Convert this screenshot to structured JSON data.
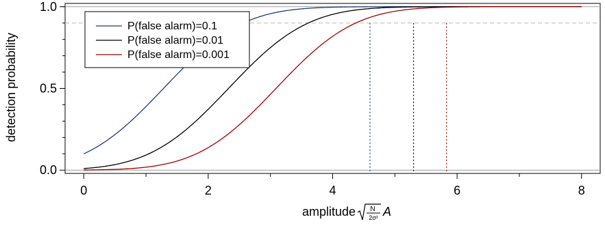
{
  "chart_data": {
    "type": "line",
    "xlabel": "amplitude",
    "xlabel_factor": {
      "numerator": "N",
      "denominator": "2σ²",
      "variable": "A"
    },
    "ylabel": "detection probability",
    "xlim": [
      -0.3,
      8.3
    ],
    "ylim": [
      -0.02,
      1.02
    ],
    "x_ticks": [
      0,
      2,
      4,
      6,
      8
    ],
    "x_tick_labels": [
      "0",
      "2",
      "4",
      "6",
      "8"
    ],
    "y_ticks": [
      0.0,
      0.5,
      1.0
    ],
    "y_tick_labels": [
      "0.0",
      "0.5",
      "1.0"
    ],
    "reference_line_y": 0.9,
    "legend_position": "top-left",
    "series": [
      {
        "name": "P(false alarm)=0.1",
        "color": "#1f3a7a",
        "false_alarm": 0.1,
        "x_at_0.9": 4.6
      },
      {
        "name": "P(false alarm)=0.01",
        "color": "#000000",
        "false_alarm": 0.01,
        "x_at_0.9": 5.3
      },
      {
        "name": "P(false alarm)=0.001",
        "color": "#a00000",
        "false_alarm": 0.001,
        "x_at_0.9": 5.83
      }
    ]
  }
}
